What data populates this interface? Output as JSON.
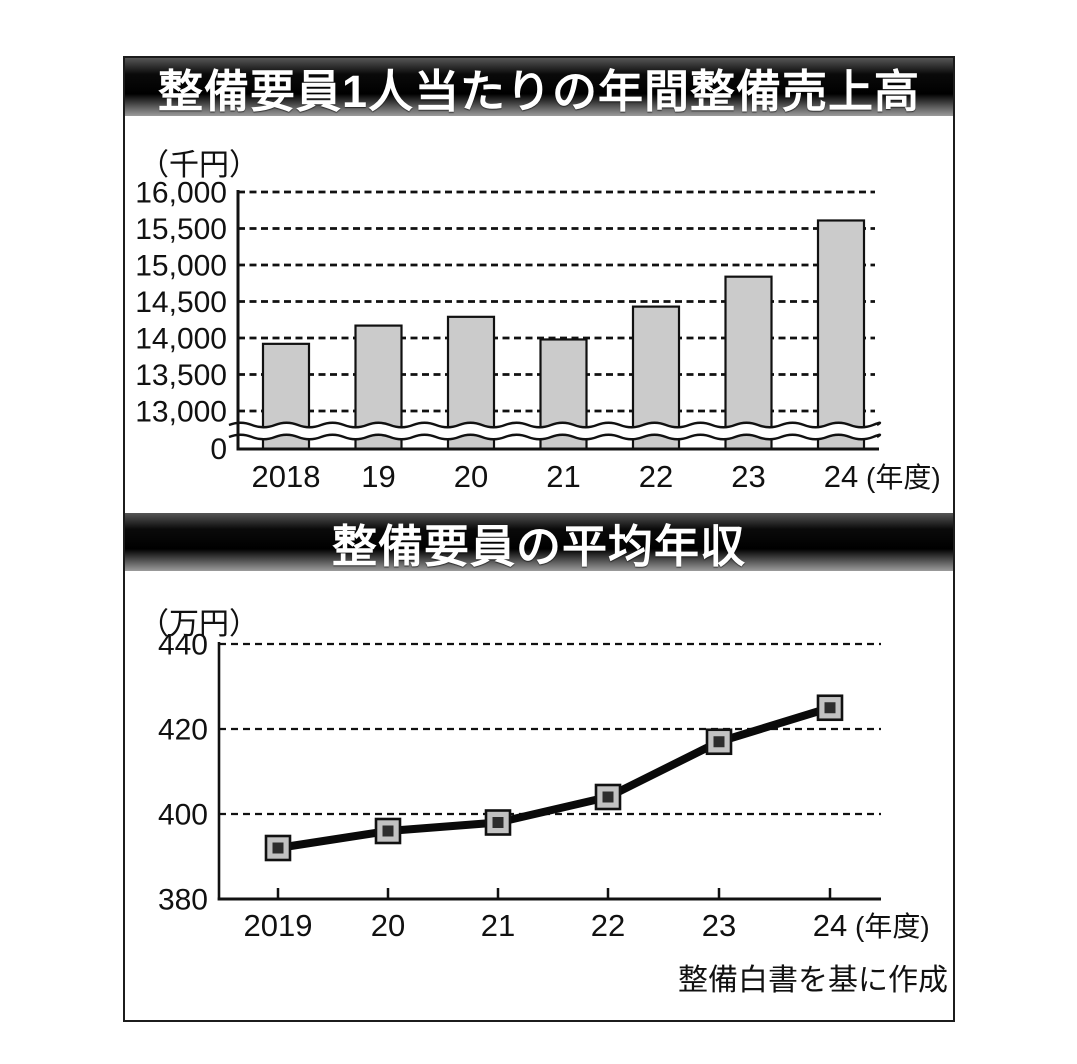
{
  "source_note": "整備白書を基に作成",
  "colors": {
    "bar_fill": "#cbcbcb",
    "stroke": "#111111",
    "line": "#0a0a0a",
    "marker_fill": "#c2c2c2",
    "marker_inner": "#2d2d2d",
    "panel_border": "#1c1c1c"
  },
  "chart_data": [
    {
      "type": "bar",
      "title": "整備要員1人当たりの年間整備売上高",
      "unit_label": "（千円）",
      "categories": [
        "2018",
        "19",
        "20",
        "21",
        "22",
        "23",
        "24"
      ],
      "category_suffix": "(年度)",
      "values": [
        13920,
        14170,
        14290,
        13980,
        14430,
        14840,
        15610
      ],
      "yticks": [
        13000,
        13500,
        14000,
        14500,
        15000,
        15500,
        16000
      ],
      "ytick_labels": [
        "13,000",
        "13,500",
        "14,000",
        "14,500",
        "15,000",
        "15,500",
        "16,000"
      ],
      "zero_label": "0",
      "axis_break": true,
      "ylim_display": [
        13000,
        16000
      ],
      "grid": "dashed",
      "legend": "none"
    },
    {
      "type": "line",
      "title": "整備要員の平均年収",
      "unit_label": "（万円）",
      "categories": [
        "2019",
        "20",
        "21",
        "22",
        "23",
        "24"
      ],
      "category_suffix": "(年度)",
      "values": [
        392,
        396,
        398,
        404,
        417,
        425
      ],
      "yticks": [
        380,
        400,
        420,
        440
      ],
      "ytick_labels": [
        "380",
        "400",
        "420",
        "440"
      ],
      "ylim": [
        380,
        440
      ],
      "marker": "square",
      "grid": "dashed",
      "legend": "none"
    }
  ]
}
